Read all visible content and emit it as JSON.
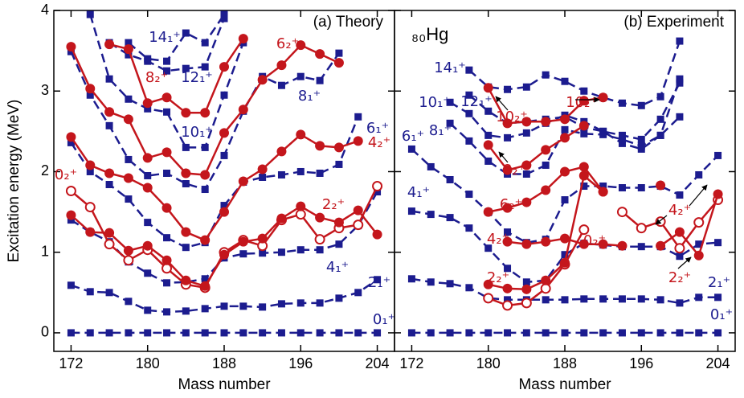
{
  "chart_data": [
    {
      "type": "line",
      "title": "(a) Theory",
      "xlabel": "Mass number",
      "ylabel": "Excitation energy (MeV)",
      "xlim": [
        170.2,
        205.8
      ],
      "ylim": [
        -0.23,
        4
      ],
      "xticks": [
        172,
        180,
        188,
        196,
        204
      ],
      "yticks": [
        0,
        1,
        2,
        3,
        4
      ],
      "x": [
        172,
        174,
        176,
        178,
        180,
        182,
        184,
        186,
        188,
        190,
        192,
        194,
        196,
        198,
        200,
        202,
        204
      ],
      "series": [
        {
          "name": "0₁⁺",
          "color": "#1c1c8f",
          "marker": "square",
          "dashed": true,
          "values": [
            0,
            0,
            0,
            0,
            0,
            0,
            0,
            0,
            0,
            0,
            0,
            0,
            0,
            0,
            0,
            0,
            0
          ]
        },
        {
          "name": "2₁⁺",
          "color": "#1c1c8f",
          "marker": "square",
          "dashed": true,
          "values": [
            0.59,
            0.51,
            0.5,
            0.39,
            0.28,
            0.26,
            0.27,
            0.3,
            0.33,
            0.33,
            0.32,
            0.36,
            0.37,
            0.37,
            0.43,
            0.5,
            0.66
          ]
        },
        {
          "name": "4₁⁺",
          "color": "#1c1c8f",
          "marker": "square",
          "dashed": true,
          "values": [
            1.4,
            1.25,
            1.13,
            0.88,
            0.74,
            0.62,
            0.63,
            0.67,
            0.93,
            0.98,
            0.99,
            1.0,
            1.03,
            1.03,
            1.1,
            1.33,
            1.75
          ]
        },
        {
          "name": "6₁⁺",
          "color": "#1c1c8f",
          "marker": "square",
          "dashed": true,
          "values": [
            2.36,
            2.0,
            1.84,
            1.66,
            1.37,
            1.18,
            1.06,
            1.12,
            1.58,
            1.87,
            1.93,
            1.96,
            2.0,
            1.98,
            2.09,
            2.68,
            null
          ]
        },
        {
          "name": "8₁⁺",
          "color": "#1c1c8f",
          "marker": "square",
          "dashed": true,
          "values": [
            3.49,
            2.95,
            2.57,
            2.15,
            1.95,
            1.98,
            1.85,
            1.78,
            2.2,
            2.75,
            3.18,
            3.07,
            3.18,
            3.13,
            3.47,
            null,
            null
          ]
        },
        {
          "name": "10₁⁺",
          "color": "#1c1c8f",
          "marker": "square",
          "dashed": true,
          "values": [
            null,
            3.95,
            3.15,
            2.9,
            2.78,
            2.74,
            2.3,
            2.3,
            2.95,
            3.6,
            null,
            null,
            null,
            null,
            null,
            null,
            null
          ]
        },
        {
          "name": "12₁⁺",
          "color": "#1c1c8f",
          "marker": "square",
          "dashed": true,
          "values": [
            null,
            null,
            3.6,
            3.45,
            3.37,
            3.25,
            3.28,
            3.3,
            3.9,
            null,
            null,
            null,
            null,
            null,
            null,
            null,
            null
          ]
        },
        {
          "name": "14₁⁺",
          "color": "#1c1c8f",
          "marker": "square",
          "dashed": true,
          "values": [
            null,
            null,
            null,
            3.6,
            3.4,
            3.37,
            3.72,
            3.6,
            3.95,
            null,
            null,
            null,
            null,
            null,
            null,
            null,
            null
          ]
        },
        {
          "name": "0₂⁺",
          "color": "#c4161c",
          "marker": "open-circle",
          "dashed": false,
          "values": [
            1.76,
            1.56,
            1.1,
            0.9,
            1.03,
            0.8,
            0.6,
            0.56,
            1.0,
            1.15,
            1.08,
            1.4,
            1.47,
            1.16,
            1.3,
            1.34,
            1.82
          ]
        },
        {
          "name": "2₂⁺",
          "color": "#c4161c",
          "marker": "circle",
          "dashed": false,
          "values": [
            1.46,
            1.25,
            1.24,
            1.02,
            1.08,
            0.9,
            0.65,
            0.58,
            0.97,
            1.13,
            1.17,
            1.42,
            1.57,
            1.43,
            1.37,
            1.52,
            1.22
          ]
        },
        {
          "name": "4₂⁺",
          "color": "#c4161c",
          "marker": "circle",
          "dashed": false,
          "values": [
            2.43,
            2.08,
            1.98,
            1.92,
            1.8,
            1.55,
            1.25,
            1.15,
            1.5,
            1.88,
            2.03,
            2.25,
            2.46,
            2.32,
            2.3,
            2.38,
            null
          ]
        },
        {
          "name": "6₂⁺",
          "color": "#c4161c",
          "marker": "circle",
          "dashed": false,
          "values": [
            3.55,
            3.03,
            2.74,
            2.65,
            2.17,
            2.24,
            1.98,
            1.96,
            2.48,
            2.77,
            3.14,
            3.32,
            3.57,
            3.46,
            3.35,
            null,
            null
          ]
        },
        {
          "name": "8₂⁺",
          "color": "#c4161c",
          "marker": "circle",
          "dashed": false,
          "values": [
            null,
            null,
            3.58,
            3.52,
            2.85,
            2.92,
            2.73,
            2.73,
            3.3,
            3.65,
            null,
            null,
            null,
            null,
            null,
            null,
            null
          ]
        }
      ]
    },
    {
      "type": "line",
      "title": "(b) Experiment",
      "annotation": "₈₀Hg",
      "xlabel": "Mass number",
      "xlim": [
        170.2,
        205.8
      ],
      "ylim": [
        -0.23,
        4
      ],
      "xticks": [
        172,
        180,
        188,
        196,
        204
      ],
      "x": [
        172,
        174,
        176,
        178,
        180,
        182,
        184,
        186,
        188,
        190,
        192,
        194,
        196,
        198,
        200,
        202,
        204
      ],
      "series": [
        {
          "name": "0₁⁺",
          "color": "#1c1c8f",
          "marker": "square",
          "dashed": true,
          "values": [
            0,
            0,
            0,
            0,
            0,
            0,
            0,
            0,
            0,
            0,
            0,
            0,
            0,
            0,
            0,
            0,
            0
          ]
        },
        {
          "name": "2₁⁺",
          "color": "#1c1c8f",
          "marker": "square",
          "dashed": true,
          "values": [
            0.67,
            0.63,
            0.61,
            0.56,
            0.43,
            0.41,
            0.41,
            0.41,
            0.41,
            0.42,
            0.42,
            0.42,
            0.42,
            0.41,
            0.37,
            0.44,
            0.44
          ]
        },
        {
          "name": "4₁⁺",
          "color": "#1c1c8f",
          "marker": "square",
          "dashed": true,
          "values": [
            1.51,
            1.47,
            1.43,
            1.3,
            1.05,
            0.8,
            0.63,
            0.65,
            0.97,
            1.11,
            1.09,
            1.07,
            1.07,
            1.07,
            0.95,
            1.1,
            1.12
          ]
        },
        {
          "name": "6₁⁺",
          "color": "#1c1c8f",
          "marker": "square",
          "dashed": true,
          "values": [
            2.28,
            2.06,
            1.9,
            1.72,
            1.5,
            1.25,
            1.12,
            1.16,
            1.65,
            1.82,
            1.82,
            1.8,
            1.8,
            1.82,
            1.71,
            1.96,
            2.2
          ]
        },
        {
          "name": "8₁⁺",
          "color": "#1c1c8f",
          "marker": "square",
          "dashed": true,
          "values": [
            null,
            null,
            2.6,
            2.38,
            2.13,
            1.97,
            1.97,
            2.08,
            2.52,
            2.47,
            2.46,
            2.4,
            2.32,
            2.45,
            2.68,
            null,
            null
          ]
        },
        {
          "name": "10₁⁺",
          "color": "#1c1c8f",
          "marker": "square",
          "dashed": true,
          "values": [
            null,
            null,
            2.86,
            2.72,
            2.45,
            2.42,
            2.48,
            2.6,
            2.7,
            2.62,
            2.5,
            2.45,
            2.4,
            2.65,
            3.1,
            null,
            null
          ]
        },
        {
          "name": "12₁⁺",
          "color": "#1c1c8f",
          "marker": "square",
          "dashed": true,
          "values": [
            null,
            null,
            null,
            2.95,
            2.75,
            2.6,
            2.62,
            2.65,
            2.68,
            2.55,
            2.5,
            2.35,
            2.28,
            2.45,
            3.15,
            null,
            null
          ]
        },
        {
          "name": "14₁⁺",
          "color": "#1c1c8f",
          "marker": "square",
          "dashed": true,
          "values": [
            null,
            null,
            null,
            3.26,
            3.05,
            3.02,
            3.05,
            3.2,
            3.12,
            3.0,
            2.92,
            2.85,
            2.82,
            2.93,
            3.62,
            null,
            null
          ]
        },
        {
          "name": "0₂⁺",
          "color": "#c4161c",
          "marker": "open-circle",
          "dashed": false,
          "values": [
            null,
            null,
            null,
            null,
            0.43,
            0.34,
            0.37,
            0.55,
            0.85,
            1.28,
            null,
            1.5,
            1.3,
            1.38,
            1.05,
            1.37,
            1.65
          ]
        },
        {
          "name": "2₂⁺",
          "color": "#c4161c",
          "marker": "circle",
          "dashed": false,
          "values": [
            null,
            null,
            null,
            null,
            0.6,
            0.55,
            0.54,
            0.65,
            0.87,
            1.95,
            1.75,
            null,
            null,
            1.08,
            1.25,
            0.96,
            1.72
          ]
        },
        {
          "name": "4₂⁺",
          "color": "#c4161c",
          "marker": "circle",
          "dashed": false,
          "values": [
            null,
            null,
            null,
            null,
            null,
            1.13,
            1.1,
            1.13,
            1.17,
            1.1,
            1.1,
            1.08,
            null,
            1.83,
            null,
            null,
            null
          ]
        },
        {
          "name": "6₂⁺",
          "color": "#c4161c",
          "marker": "circle",
          "dashed": false,
          "values": [
            null,
            null,
            null,
            null,
            1.5,
            1.55,
            1.62,
            1.77,
            2.0,
            2.06,
            1.75,
            null,
            null,
            null,
            null,
            null,
            null
          ]
        },
        {
          "name": "8₂⁺",
          "color": "#c4161c",
          "marker": "circle",
          "dashed": false,
          "values": [
            null,
            null,
            null,
            null,
            2.33,
            2.02,
            2.08,
            2.27,
            2.42,
            2.57,
            null,
            null,
            null,
            null,
            null,
            null,
            null
          ]
        },
        {
          "name": "10₂⁺",
          "color": "#c4161c",
          "marker": "circle",
          "dashed": false,
          "values": [
            null,
            null,
            null,
            null,
            3.04,
            2.6,
            2.62,
            2.62,
            2.65,
            2.88,
            2.92,
            null,
            null,
            null,
            null,
            null,
            null
          ]
        }
      ]
    }
  ]
}
